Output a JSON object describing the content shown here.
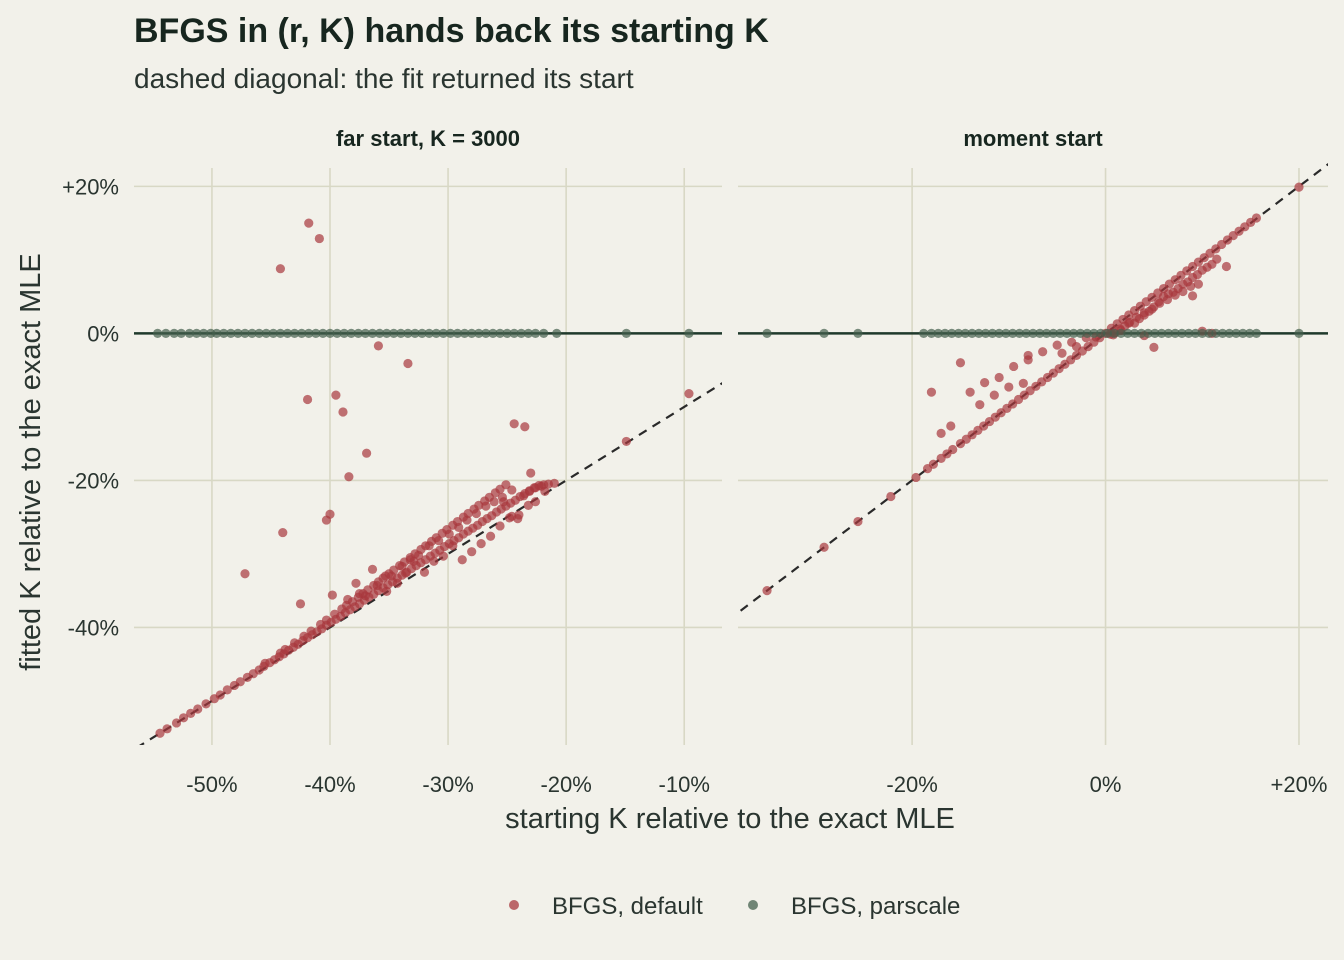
{
  "title": "BFGS in (r, K) hands back its starting K",
  "subtitle": "dashed diagonal: the fit returned its start",
  "colors": {
    "background": "#f2f1ea",
    "grid": "#d8d8c5",
    "default_series": "#a8383d",
    "parscale_series": "#44604d",
    "zero_line": "#203a2c",
    "diagonal": "#2a2a2a"
  },
  "chart_data": [
    {
      "type": "scatter",
      "facet": "far start, K = 3000",
      "xlabel": "starting K relative to the exact MLE",
      "ylabel": "fitted K relative to the exact MLE",
      "x_unit": "%",
      "y_unit": "%",
      "xlim": [
        -56.6,
        -6.8
      ],
      "ylim": [
        -56.0,
        22.5
      ],
      "x_ticks": [
        -50,
        -40,
        -30,
        -20,
        -10
      ],
      "x_tick_labels": [
        "-50%",
        "-40%",
        "-30%",
        "-20%",
        "-10%"
      ],
      "y_ticks": [
        20,
        0,
        -20,
        -40
      ],
      "y_tick_labels": [
        "+20%",
        "0%",
        "-20%",
        "-40%"
      ],
      "grid": true,
      "reference_lines": [
        "y = 0 (solid)",
        "y = x (dashed)"
      ],
      "series": [
        {
          "name": "BFGS, default",
          "x": [
            -54.4,
            -53.8,
            -53.0,
            -52.4,
            -51.8,
            -51.2,
            -50.5,
            -49.8,
            -49.3,
            -48.7,
            -48.1,
            -47.6,
            -47.0,
            -46.5,
            -46.0,
            -45.6,
            -45.1,
            -44.7,
            -44.3,
            -43.9,
            -43.5,
            -43.1,
            -42.7,
            -42.3,
            -41.9,
            -41.5,
            -41.1,
            -40.7,
            -40.3,
            -39.9,
            -39.5,
            -39.1,
            -38.7,
            -38.3,
            -37.9,
            -37.5,
            -37.1,
            -36.7,
            -36.3,
            -35.9,
            -35.5,
            -35.1,
            -34.7,
            -34.3,
            -33.9,
            -33.5,
            -33.1,
            -32.7,
            -32.3,
            -31.9,
            -31.5,
            -31.1,
            -30.7,
            -30.3,
            -29.9,
            -29.5,
            -29.1,
            -28.7,
            -28.3,
            -27.9,
            -27.5,
            -27.1,
            -26.7,
            -26.3,
            -25.9,
            -25.5,
            -25.1,
            -24.7,
            -24.3,
            -23.9,
            -23.5,
            -23.1,
            -22.7,
            -22.3,
            -21.9,
            -21.5,
            -21.0,
            -45.5,
            -44.2,
            -43.8,
            -43.0,
            -42.2,
            -41.6,
            -40.8,
            -40.3,
            -39.6,
            -39.0,
            -38.6,
            -38.1,
            -37.6,
            -37.2,
            -36.8,
            -36.3,
            -35.9,
            -35.5,
            -35.0,
            -34.6,
            -34.1,
            -33.7,
            -33.2,
            -32.8,
            -32.3,
            -31.9,
            -31.4,
            -31.0,
            -30.5,
            -30.1,
            -29.6,
            -29.2,
            -28.7,
            -28.3,
            -27.8,
            -27.4,
            -26.9,
            -26.5,
            -26.0,
            -25.6,
            -25.1,
            -24.6,
            -24.1,
            -23.6,
            -23.1,
            -22.6,
            -22.1,
            -41.8,
            -40.9,
            -44.2,
            -35.9,
            -33.4,
            -41.9,
            -39.5,
            -38.9,
            -36.9,
            -38.4,
            -44.0,
            -40.3,
            -40.0,
            -47.2,
            -42.5,
            -39.8,
            -37.8,
            -36.4,
            -35.2,
            -34.3,
            -33.6,
            -32.9,
            -32.0,
            -31.2,
            -30.4,
            -29.6,
            -28.8,
            -28.0,
            -27.2,
            -26.4,
            -25.6,
            -24.8,
            -24.0,
            -23.2,
            -22.6,
            -21.8,
            -23.0,
            -23.5,
            -24.4,
            -25.3,
            -14.9,
            -9.6,
            -38.5,
            -37.5,
            -37.0,
            -36.0,
            -35.3,
            -34.8,
            -33.9,
            -33.2,
            -32.5,
            -31.6,
            -30.8,
            -29.9,
            -29.1,
            -28.4,
            -27.6,
            -26.8,
            -26.1,
            -25.4,
            -24.6
          ],
          "y": [
            -54.4,
            -53.8,
            -53.0,
            -52.3,
            -51.7,
            -51.1,
            -50.4,
            -49.7,
            -49.2,
            -48.5,
            -47.9,
            -47.4,
            -46.8,
            -46.3,
            -45.8,
            -45.3,
            -44.8,
            -44.4,
            -44.0,
            -43.6,
            -43.1,
            -42.7,
            -42.3,
            -41.8,
            -41.4,
            -41.0,
            -40.6,
            -40.2,
            -39.7,
            -39.3,
            -38.9,
            -38.5,
            -38.0,
            -37.6,
            -37.2,
            -36.8,
            -36.3,
            -35.9,
            -35.5,
            -35.0,
            -34.6,
            -34.2,
            -33.8,
            -33.3,
            -32.9,
            -32.5,
            -32.0,
            -31.6,
            -31.2,
            -30.8,
            -30.3,
            -29.9,
            -29.5,
            -29.0,
            -28.6,
            -28.2,
            -27.8,
            -27.3,
            -26.9,
            -26.5,
            -26.1,
            -25.6,
            -25.2,
            -24.8,
            -24.3,
            -23.9,
            -23.5,
            -23.1,
            -22.7,
            -22.2,
            -21.8,
            -21.4,
            -21.0,
            -20.7,
            -20.6,
            -20.5,
            -20.4,
            -44.9,
            -43.5,
            -43.0,
            -42.1,
            -41.2,
            -40.5,
            -39.6,
            -39.0,
            -38.2,
            -37.5,
            -37.0,
            -36.5,
            -35.9,
            -35.4,
            -34.9,
            -34.3,
            -33.8,
            -33.3,
            -32.7,
            -32.2,
            -31.6,
            -31.1,
            -30.5,
            -30.0,
            -29.4,
            -28.9,
            -28.3,
            -27.8,
            -27.2,
            -26.7,
            -26.1,
            -25.6,
            -25.0,
            -24.5,
            -23.9,
            -23.4,
            -22.8,
            -22.3,
            -21.7,
            -21.2,
            -20.6,
            -24.9,
            -25.2,
            -22.1,
            -21.5,
            -21.0,
            -20.8,
            15.0,
            12.9,
            8.8,
            -1.7,
            -4.1,
            -9.0,
            -8.4,
            -10.7,
            -16.3,
            -19.5,
            -27.1,
            -25.4,
            -24.6,
            -32.7,
            -36.8,
            -35.6,
            -34.0,
            -32.1,
            -35.1,
            -34.0,
            -32.6,
            -31.0,
            -32.5,
            -31.0,
            -30.3,
            -28.9,
            -30.8,
            -29.7,
            -28.6,
            -27.6,
            -26.2,
            -25.1,
            -24.7,
            -23.4,
            -22.9,
            -21.5,
            -19.0,
            -12.7,
            -12.3,
            -22.9,
            -14.7,
            -8.2,
            -36.2,
            -35.4,
            -35.7,
            -34.3,
            -33.0,
            -33.0,
            -31.7,
            -30.8,
            -30.2,
            -28.9,
            -28.2,
            -27.3,
            -26.4,
            -25.4,
            -24.5,
            -23.5,
            -22.9,
            -22.3,
            -21.3
          ]
        },
        {
          "name": "BFGS, parscale",
          "x": [
            -54.6,
            -53.9,
            -53.2,
            -52.6,
            -51.9,
            -51.3,
            -50.7,
            -50.1,
            -49.6,
            -49.0,
            -48.4,
            -47.8,
            -47.2,
            -46.6,
            -46.0,
            -45.4,
            -44.8,
            -44.2,
            -43.6,
            -43.0,
            -42.4,
            -41.8,
            -41.2,
            -40.6,
            -40.0,
            -39.4,
            -38.8,
            -38.2,
            -37.6,
            -37.0,
            -36.4,
            -35.8,
            -35.2,
            -34.6,
            -34.0,
            -33.4,
            -32.8,
            -32.2,
            -31.6,
            -31.0,
            -30.4,
            -29.8,
            -29.2,
            -28.6,
            -28.0,
            -27.4,
            -26.8,
            -26.2,
            -25.6,
            -25.0,
            -24.4,
            -23.8,
            -23.2,
            -22.6,
            -21.9,
            -20.8,
            -14.9,
            -9.6
          ],
          "y": [
            0,
            0,
            0,
            0,
            0,
            0,
            0,
            0,
            0,
            0,
            0,
            0,
            0,
            0,
            0,
            0,
            0,
            0,
            0,
            0,
            0,
            0,
            0,
            0,
            0,
            0,
            0,
            0,
            0,
            0,
            0,
            0,
            0,
            0,
            0,
            0,
            0,
            0,
            0,
            0,
            0,
            0,
            0,
            0,
            0,
            0,
            0,
            0,
            0,
            0,
            0,
            0,
            0,
            0,
            0,
            0,
            0,
            0
          ]
        }
      ]
    },
    {
      "type": "scatter",
      "facet": "moment start",
      "xlabel": "starting K relative to the exact MLE",
      "ylabel": "fitted K relative to the exact MLE",
      "x_unit": "%",
      "y_unit": "%",
      "xlim": [
        -38.0,
        23.0
      ],
      "ylim": [
        -56.0,
        22.5
      ],
      "x_ticks": [
        -20,
        0,
        20
      ],
      "x_tick_labels": [
        "-20%",
        "0%",
        "+20%"
      ],
      "y_ticks": [
        20,
        0,
        -20,
        -40
      ],
      "y_tick_labels": [
        "+20%",
        "0%",
        "-20%",
        "-40%"
      ],
      "grid": true,
      "reference_lines": [
        "y = 0 (solid)",
        "y = x (dashed)"
      ],
      "series": [
        {
          "name": "BFGS, default",
          "x": [
            -35.0,
            -29.1,
            -25.6,
            -22.2,
            -19.6,
            -18.4,
            -17.8,
            -17.0,
            -16.4,
            -15.8,
            -15.0,
            -14.4,
            -13.8,
            -13.2,
            -12.6,
            -12.0,
            -11.4,
            -10.8,
            -10.2,
            -9.6,
            -9.0,
            -8.4,
            -7.8,
            -7.2,
            -6.6,
            -6.0,
            -5.4,
            -4.8,
            -4.2,
            -3.6,
            -3.0,
            -2.4,
            -1.8,
            -1.2,
            -0.6,
            0.0,
            0.6,
            1.2,
            1.8,
            2.4,
            3.0,
            3.6,
            4.2,
            4.8,
            5.4,
            6.0,
            6.6,
            7.2,
            7.8,
            8.4,
            9.0,
            9.6,
            10.2,
            10.8,
            11.4,
            12.0,
            12.6,
            13.2,
            13.8,
            14.4,
            15.0,
            15.6,
            20.0,
            -18.0,
            -15.0,
            -14.0,
            -12.5,
            -11.0,
            -9.5,
            -8.0,
            -6.5,
            -5.0,
            -3.5,
            -2.0,
            0.5,
            1.0,
            1.5,
            2.0,
            2.5,
            3.0,
            3.5,
            4.0,
            4.5,
            5.0,
            5.5,
            6.0,
            6.5,
            7.0,
            7.5,
            8.0,
            8.5,
            9.0,
            9.5,
            10.0,
            10.5,
            11.0,
            11.5,
            12.5,
            -17.0,
            -16.0,
            -13.0,
            -11.5,
            -10.0,
            -8.5,
            -8.0,
            -4.5,
            -3.0,
            -1.0,
            0.8,
            1.6,
            2.4,
            3.2,
            4.0,
            4.8,
            5.6,
            6.4,
            7.2,
            8.0,
            8.8,
            9.6,
            11.0,
            10.0,
            9.0,
            5.0,
            4.0
          ],
          "y": [
            -35.0,
            -29.1,
            -25.6,
            -22.2,
            -19.6,
            -18.4,
            -17.8,
            -17.0,
            -16.4,
            -15.8,
            -15.0,
            -14.4,
            -13.8,
            -13.2,
            -12.6,
            -12.0,
            -11.4,
            -10.8,
            -10.2,
            -9.6,
            -9.0,
            -8.4,
            -7.8,
            -7.2,
            -6.6,
            -6.0,
            -5.4,
            -4.8,
            -4.2,
            -3.6,
            -3.0,
            -2.4,
            -1.8,
            -1.2,
            -0.6,
            0.0,
            0.7,
            1.3,
            1.9,
            2.5,
            3.1,
            3.7,
            4.3,
            4.9,
            5.5,
            6.1,
            6.7,
            7.3,
            7.9,
            8.5,
            9.1,
            9.7,
            10.3,
            10.9,
            11.5,
            12.1,
            12.7,
            13.3,
            13.9,
            14.5,
            15.1,
            15.7,
            19.9,
            -8.0,
            -4.0,
            -8.0,
            -6.7,
            -6.0,
            -4.5,
            -3.0,
            -2.5,
            -1.6,
            -1.2,
            -0.6,
            -0.1,
            0.1,
            0.6,
            1.0,
            1.5,
            1.4,
            2.0,
            2.8,
            3.0,
            3.6,
            4.3,
            5.0,
            5.4,
            5.6,
            6.1,
            6.7,
            7.0,
            7.6,
            8.0,
            8.6,
            9.0,
            9.4,
            10.1,
            9.1,
            -13.6,
            -12.6,
            -9.7,
            -8.4,
            -7.3,
            -6.8,
            -3.6,
            -2.7,
            -1.8,
            -0.5,
            -0.2,
            0.4,
            1.4,
            2.2,
            2.5,
            3.3,
            4.1,
            4.6,
            5.2,
            5.7,
            6.4,
            6.7,
            0.0,
            0.3,
            5.1,
            -1.9,
            -0.3
          ]
        },
        {
          "name": "BFGS, parscale",
          "x": [
            -35.0,
            -29.1,
            -25.6,
            -18.8,
            -18.0,
            -17.3,
            -16.6,
            -15.9,
            -15.2,
            -14.5,
            -13.8,
            -13.1,
            -12.4,
            -11.7,
            -11.0,
            -10.3,
            -9.6,
            -8.9,
            -8.2,
            -7.5,
            -6.8,
            -6.1,
            -5.4,
            -4.7,
            -4.0,
            -3.3,
            -2.6,
            -1.9,
            -1.2,
            -0.5,
            0.2,
            0.9,
            1.6,
            2.3,
            3.0,
            3.7,
            4.4,
            5.1,
            5.8,
            6.5,
            7.2,
            7.9,
            8.6,
            9.3,
            10.0,
            10.7,
            11.4,
            12.1,
            12.8,
            13.5,
            14.2,
            14.9,
            15.6,
            20.0
          ],
          "y": [
            0,
            0,
            0,
            0,
            0,
            0,
            0,
            0,
            0,
            0,
            0,
            0,
            0,
            0,
            0,
            0,
            0,
            0,
            0,
            0,
            0,
            0,
            0,
            0,
            0,
            0,
            0,
            0,
            0,
            0,
            0,
            0,
            0,
            0,
            0,
            0,
            0,
            0,
            0,
            0,
            0,
            0,
            0,
            0,
            0,
            0,
            0,
            0,
            0,
            0,
            0,
            0,
            0,
            0
          ]
        }
      ]
    }
  ]
}
